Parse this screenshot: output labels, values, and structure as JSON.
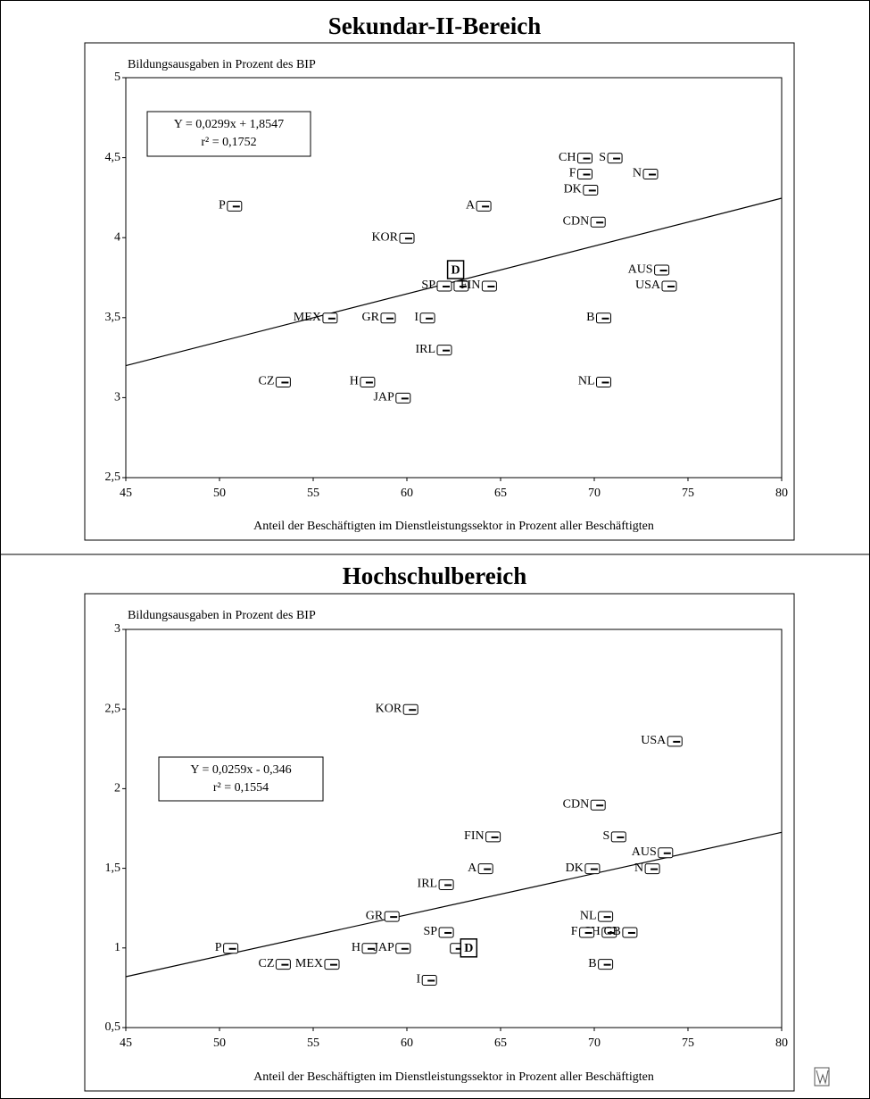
{
  "chart_data": [
    {
      "type": "scatter",
      "title": "Sekundar-II-Bereich",
      "y_label": "Bildungsausgaben in Prozent des BIP",
      "x_label": "Anteil der Beschäftigten im Dienstleistungssektor in Prozent aller Beschäftigten",
      "equation": "Y = 0,0299x + 1,8547",
      "r2": "r² = 0,1752",
      "trend": {
        "slope": 0.0299,
        "intercept": 1.8547
      },
      "labels": [
        "P",
        "CH",
        "S",
        "F",
        "N",
        "DK",
        "A",
        "CDN",
        "KOR",
        "D",
        "SP",
        null,
        "FIN",
        "AUS",
        "USA",
        "MEX",
        "GR",
        "I",
        "B",
        "IRL",
        "CZ",
        "H",
        "NL",
        "JAP"
      ],
      "x": [
        50.8,
        69.5,
        71.1,
        69.5,
        73.0,
        69.8,
        64.1,
        70.2,
        60.0,
        62.6,
        62.0,
        62.9,
        64.4,
        73.6,
        74.0,
        55.9,
        59.0,
        61.1,
        70.5,
        62.0,
        53.4,
        57.9,
        70.5,
        59.8
      ],
      "y": [
        4.2,
        4.5,
        4.5,
        4.4,
        4.4,
        4.3,
        4.2,
        4.1,
        4.0,
        3.8,
        3.7,
        3.7,
        3.7,
        3.8,
        3.7,
        3.5,
        3.5,
        3.5,
        3.5,
        3.3,
        3.1,
        3.1,
        3.1,
        3.0
      ],
      "xlim": [
        45,
        80
      ],
      "ylim": [
        2.5,
        5
      ],
      "xticks": [
        45,
        50,
        55,
        60,
        65,
        70,
        75,
        80
      ],
      "yticks": [
        {
          "value": 2.5,
          "label": "2,5"
        },
        3,
        {
          "value": 3.5,
          "label": "3,5"
        },
        4,
        {
          "value": 4.5,
          "label": "4,5"
        },
        5
      ]
    },
    {
      "type": "scatter",
      "title": "Hochschulbereich",
      "y_label": "Bildungsausgaben in Prozent des BIP",
      "x_label": "Anteil der Beschäftigten im Dienstleistungssektor in Prozent aller Beschäftigten",
      "equation": "Y = 0,0259x - 0,346",
      "r2": "r² = 0,1554",
      "trend": {
        "slope": 0.0259,
        "intercept": -0.346
      },
      "labels": [
        "KOR",
        "USA",
        "CDN",
        "FIN",
        "S",
        "AUS",
        "A",
        "DK",
        "N",
        "IRL",
        "GR",
        "NL",
        "SP",
        "CH",
        "F",
        "GB",
        "P",
        "H",
        "JAP",
        null,
        "D",
        "B",
        "CZ",
        "MEX",
        "I"
      ],
      "x": [
        60.2,
        74.3,
        70.2,
        64.6,
        71.3,
        73.8,
        64.2,
        69.9,
        73.1,
        62.1,
        59.2,
        70.6,
        62.1,
        70.8,
        69.6,
        71.9,
        50.6,
        58.0,
        59.8,
        62.7,
        63.3,
        70.6,
        53.4,
        56.0,
        61.2
      ],
      "y": [
        2.5,
        2.3,
        1.9,
        1.7,
        1.7,
        1.6,
        1.5,
        1.5,
        1.5,
        1.4,
        1.2,
        1.2,
        1.1,
        1.1,
        1.1,
        1.1,
        1.0,
        1.0,
        1.0,
        1.0,
        1.0,
        0.9,
        0.9,
        0.9,
        0.8
      ],
      "xlim": [
        45,
        80
      ],
      "ylim": [
        0.5,
        3
      ],
      "xticks": [
        45,
        50,
        55,
        60,
        65,
        70,
        75,
        80
      ],
      "yticks": [
        {
          "value": 0.5,
          "label": "0,5"
        },
        1,
        {
          "value": 1.5,
          "label": "1,5"
        },
        2,
        {
          "value": 2.5,
          "label": "2,5"
        },
        3
      ]
    }
  ]
}
